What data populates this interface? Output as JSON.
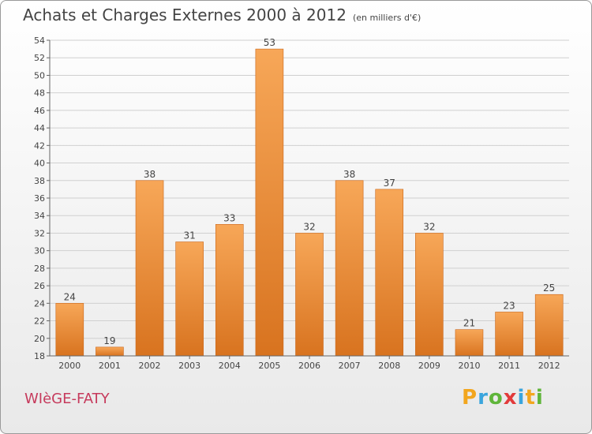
{
  "header": {
    "title": "Achats et Charges Externes 2000 à 2012",
    "unit": "(en milliers d'€)"
  },
  "footer": {
    "commune": "WIèGE-FATY",
    "logo_letters": [
      "P",
      "r",
      "o",
      "x",
      "i",
      "t",
      "i"
    ],
    "logo_colors": [
      "#f2a61e",
      "#3aa5dd",
      "#5fb53a",
      "#e23b3b",
      "#3aa5dd",
      "#f2a61e",
      "#5fb53a"
    ]
  },
  "colors": {
    "bar_light": "#f7a758",
    "bar_dark": "#d8731f",
    "grid": "#d0d0d0",
    "axis": "#666666",
    "text": "#444444"
  },
  "chart_data": {
    "type": "bar",
    "title": "Achats et Charges Externes 2000 à 2012",
    "categories": [
      "2000",
      "2001",
      "2002",
      "2003",
      "2004",
      "2005",
      "2006",
      "2007",
      "2008",
      "2009",
      "2010",
      "2011",
      "2012"
    ],
    "values": [
      24,
      19,
      38,
      31,
      33,
      53,
      32,
      38,
      37,
      32,
      21,
      23,
      25
    ],
    "ylim": [
      18,
      54
    ],
    "yticks": [
      18,
      20,
      22,
      24,
      26,
      28,
      30,
      32,
      34,
      36,
      38,
      40,
      42,
      44,
      46,
      48,
      50,
      52,
      54
    ],
    "grid": true,
    "data_labels": true,
    "legend": "none"
  }
}
